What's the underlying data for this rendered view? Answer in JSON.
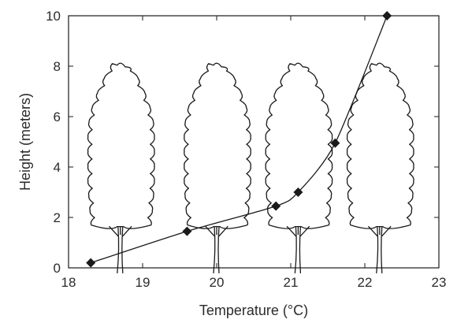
{
  "chart_data": {
    "type": "line",
    "title": "",
    "xlabel": "Temperature (°C)",
    "ylabel": "Height (meters)",
    "xlim": [
      18,
      23
    ],
    "ylim": [
      0,
      10
    ],
    "x_ticks": [
      18,
      19,
      20,
      21,
      22,
      23
    ],
    "y_ticks": [
      0,
      2,
      4,
      6,
      8,
      10
    ],
    "grid": false,
    "legend": "none",
    "marker": "diamond",
    "line_color": "#1a1a1a",
    "series": [
      {
        "x": [
          18.3,
          19.6,
          20.8,
          21.1,
          21.6,
          22.3
        ],
        "y": [
          0.2,
          1.45,
          2.45,
          3.0,
          4.95,
          10.0
        ]
      }
    ],
    "decorations": {
      "tree_outlines_at_x": [
        18.7,
        20.0,
        21.1,
        22.2
      ],
      "tree_icon": "tree-outline-icon"
    }
  }
}
